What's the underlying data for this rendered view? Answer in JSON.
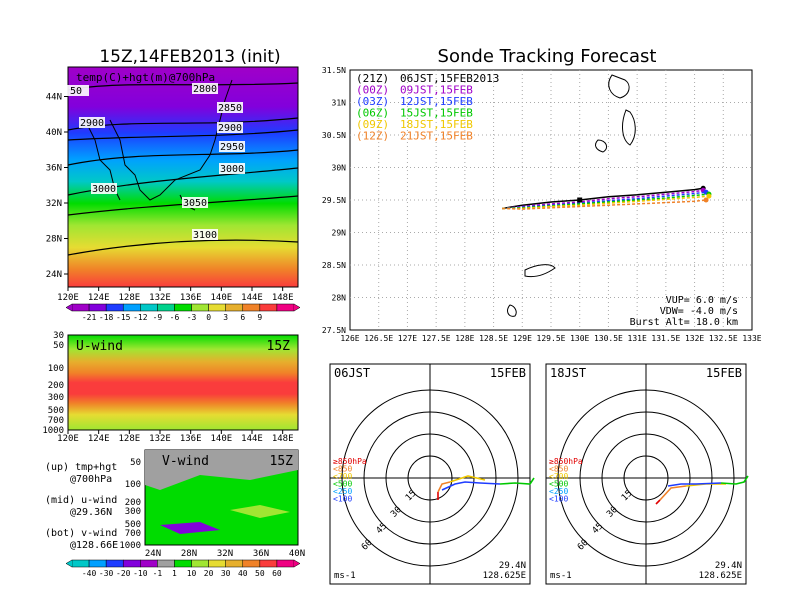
{
  "chart_data": [
    {
      "type": "heatmap",
      "title": "15Z,14FEB2013 (init)",
      "subtitle": "temp(C)+hgt(m)@700hPa",
      "x_ticks": [
        "120E",
        "124E",
        "128E",
        "132E",
        "136E",
        "140E",
        "144E",
        "148E"
      ],
      "xlim": [
        120,
        150
      ],
      "y_ticks": [
        "24N",
        "28N",
        "32N",
        "36N",
        "40N",
        "44N"
      ],
      "ylim": [
        22,
        47
      ],
      "contour_labels": [
        "2800",
        "2850",
        "2900",
        "2900",
        "2950",
        "3000",
        "3000",
        "3050",
        "3100",
        "50"
      ],
      "colorbar_labels": [
        "-21",
        "-18",
        "-15",
        "-12",
        "-9",
        "-6",
        "-3",
        "0",
        "3",
        "6",
        "9"
      ],
      "colorbar_colors": [
        "#a000c8",
        "#8200dc",
        "#1e3cff",
        "#00a0ff",
        "#00c8c8",
        "#00d28c",
        "#00dc00",
        "#a0e632",
        "#e6dc32",
        "#e6af2d",
        "#f08228",
        "#fa3c3c",
        "#f00082"
      ]
    },
    {
      "type": "line",
      "title": "Sonde Tracking Forecast",
      "xlim": [
        126,
        133
      ],
      "ylim": [
        27.5,
        31.5
      ],
      "x_ticks": [
        "126E",
        "126.5E",
        "127E",
        "127.5E",
        "128E",
        "128.5E",
        "129E",
        "129.5E",
        "130E",
        "130.5E",
        "131E",
        "131.5E",
        "132E",
        "132.5E",
        "133E"
      ],
      "y_ticks": [
        "27.5N",
        "28N",
        "28.5N",
        "29N",
        "29.5N",
        "30N",
        "30.5N",
        "31N",
        "31.5N"
      ],
      "legend": [
        {
          "code": "(21Z)",
          "text": "06JST,15FEB2013",
          "color": "#000000"
        },
        {
          "code": "(00Z)",
          "text": "09JST,15FEB",
          "color": "#a000c8"
        },
        {
          "code": "(03Z)",
          "text": "12JST,15FEB",
          "color": "#1e3cff"
        },
        {
          "code": "(06Z)",
          "text": "15JST,15FEB",
          "color": "#00c800"
        },
        {
          "code": "(09Z)",
          "text": "18JST,15FEB",
          "color": "#f0c800"
        },
        {
          "code": "(12Z)",
          "text": "21JST,15FEB",
          "color": "#f08228"
        }
      ],
      "series": [
        {
          "color": "#000000",
          "x": [
            128.65,
            129.0,
            129.5,
            130.0,
            130.5,
            131.0,
            131.5,
            132.0,
            132.15
          ],
          "y": [
            29.37,
            29.42,
            29.47,
            29.5,
            29.55,
            29.58,
            29.62,
            29.66,
            29.68
          ]
        },
        {
          "color": "#a000c8",
          "x": [
            128.65,
            129.0,
            129.5,
            130.0,
            130.5,
            131.0,
            131.5,
            132.0,
            132.15
          ],
          "y": [
            29.37,
            29.4,
            29.44,
            29.47,
            29.52,
            29.55,
            29.59,
            29.63,
            29.65
          ]
        },
        {
          "color": "#1e3cff",
          "x": [
            128.65,
            129.0,
            129.5,
            130.0,
            130.5,
            131.0,
            131.5,
            132.0,
            132.2
          ],
          "y": [
            29.37,
            29.39,
            29.42,
            29.45,
            29.49,
            29.52,
            29.56,
            29.6,
            29.62
          ]
        },
        {
          "color": "#00c800",
          "x": [
            128.65,
            129.0,
            129.5,
            130.0,
            130.5,
            131.0,
            131.5,
            132.0,
            132.25
          ],
          "y": [
            29.37,
            29.38,
            29.41,
            29.44,
            29.47,
            29.5,
            29.53,
            29.57,
            29.59
          ]
        },
        {
          "color": "#f0c800",
          "x": [
            128.65,
            129.0,
            129.5,
            130.0,
            130.5,
            131.0,
            131.5,
            132.0,
            132.25
          ],
          "y": [
            29.37,
            29.37,
            29.4,
            29.42,
            29.45,
            29.48,
            29.51,
            29.54,
            29.56
          ]
        },
        {
          "color": "#f08228",
          "x": [
            128.65,
            129.0,
            129.5,
            130.0,
            130.5,
            131.0,
            131.5,
            132.0,
            132.2
          ],
          "y": [
            29.37,
            29.36,
            29.38,
            29.4,
            29.42,
            29.44,
            29.46,
            29.48,
            29.5
          ]
        }
      ],
      "annotations": [
        "VUP= 6.0 m/s",
        "VDW= -4.0 m/s",
        "Burst Alt= 18.0 km"
      ]
    },
    {
      "type": "heatmap",
      "title": "U-wind",
      "time_label": "15Z",
      "x_ticks": [
        "120E",
        "124E",
        "128E",
        "132E",
        "136E",
        "140E",
        "144E",
        "148E"
      ],
      "y_ticks": [
        "30",
        "50",
        "100",
        "200",
        "300",
        "500",
        "700",
        "1000"
      ]
    },
    {
      "type": "heatmap",
      "title": "V-wind",
      "time_label": "15Z",
      "x_ticks": [
        "24N",
        "28N",
        "32N",
        "36N",
        "40N"
      ],
      "y_ticks": [
        "50",
        "100",
        "200",
        "300",
        "500",
        "700",
        "1000"
      ],
      "colorbar_labels": [
        "-40",
        "-30",
        "-20",
        "-10",
        "-1",
        "1",
        "10",
        "20",
        "30",
        "40",
        "50",
        "60"
      ],
      "colorbar_colors": [
        "#00c8c8",
        "#00a0ff",
        "#1e3cff",
        "#8200dc",
        "#a000c8",
        "#a0a0a0",
        "#00dc00",
        "#a0e632",
        "#e6dc32",
        "#e6af2d",
        "#f08228",
        "#fa3c3c",
        "#f00082"
      ]
    },
    {
      "type": "line",
      "title": "06JST",
      "date_label": "15FEB",
      "ring_labels": [
        "15",
        "30",
        "45",
        "60"
      ],
      "level_legend": [
        {
          "text": "≥850hPa",
          "color": "#e00000"
        },
        {
          "text": "<850",
          "color": "#f08228"
        },
        {
          "text": "<700",
          "color": "#f0c800"
        },
        {
          "text": "<500",
          "color": "#00c800"
        },
        {
          "text": "<250",
          "color": "#00a0ff"
        },
        {
          "text": "<100",
          "color": "#1e3cff"
        }
      ],
      "unit_label": "ms-1",
      "location_lat": "29.4N",
      "location_lon": "128.625E"
    },
    {
      "type": "line",
      "title": "18JST",
      "date_label": "15FEB",
      "ring_labels": [
        "15",
        "30",
        "45",
        "60"
      ],
      "unit_label": "ms-1",
      "location_lat": "29.4N",
      "location_lon": "128.625E"
    }
  ],
  "info_text": [
    [
      "(up) tmp+hgt",
      "@700hPa"
    ],
    [
      "(mid) u-wind",
      "@29.36N"
    ],
    [
      "(bot) v-wind",
      "@128.66E"
    ]
  ]
}
